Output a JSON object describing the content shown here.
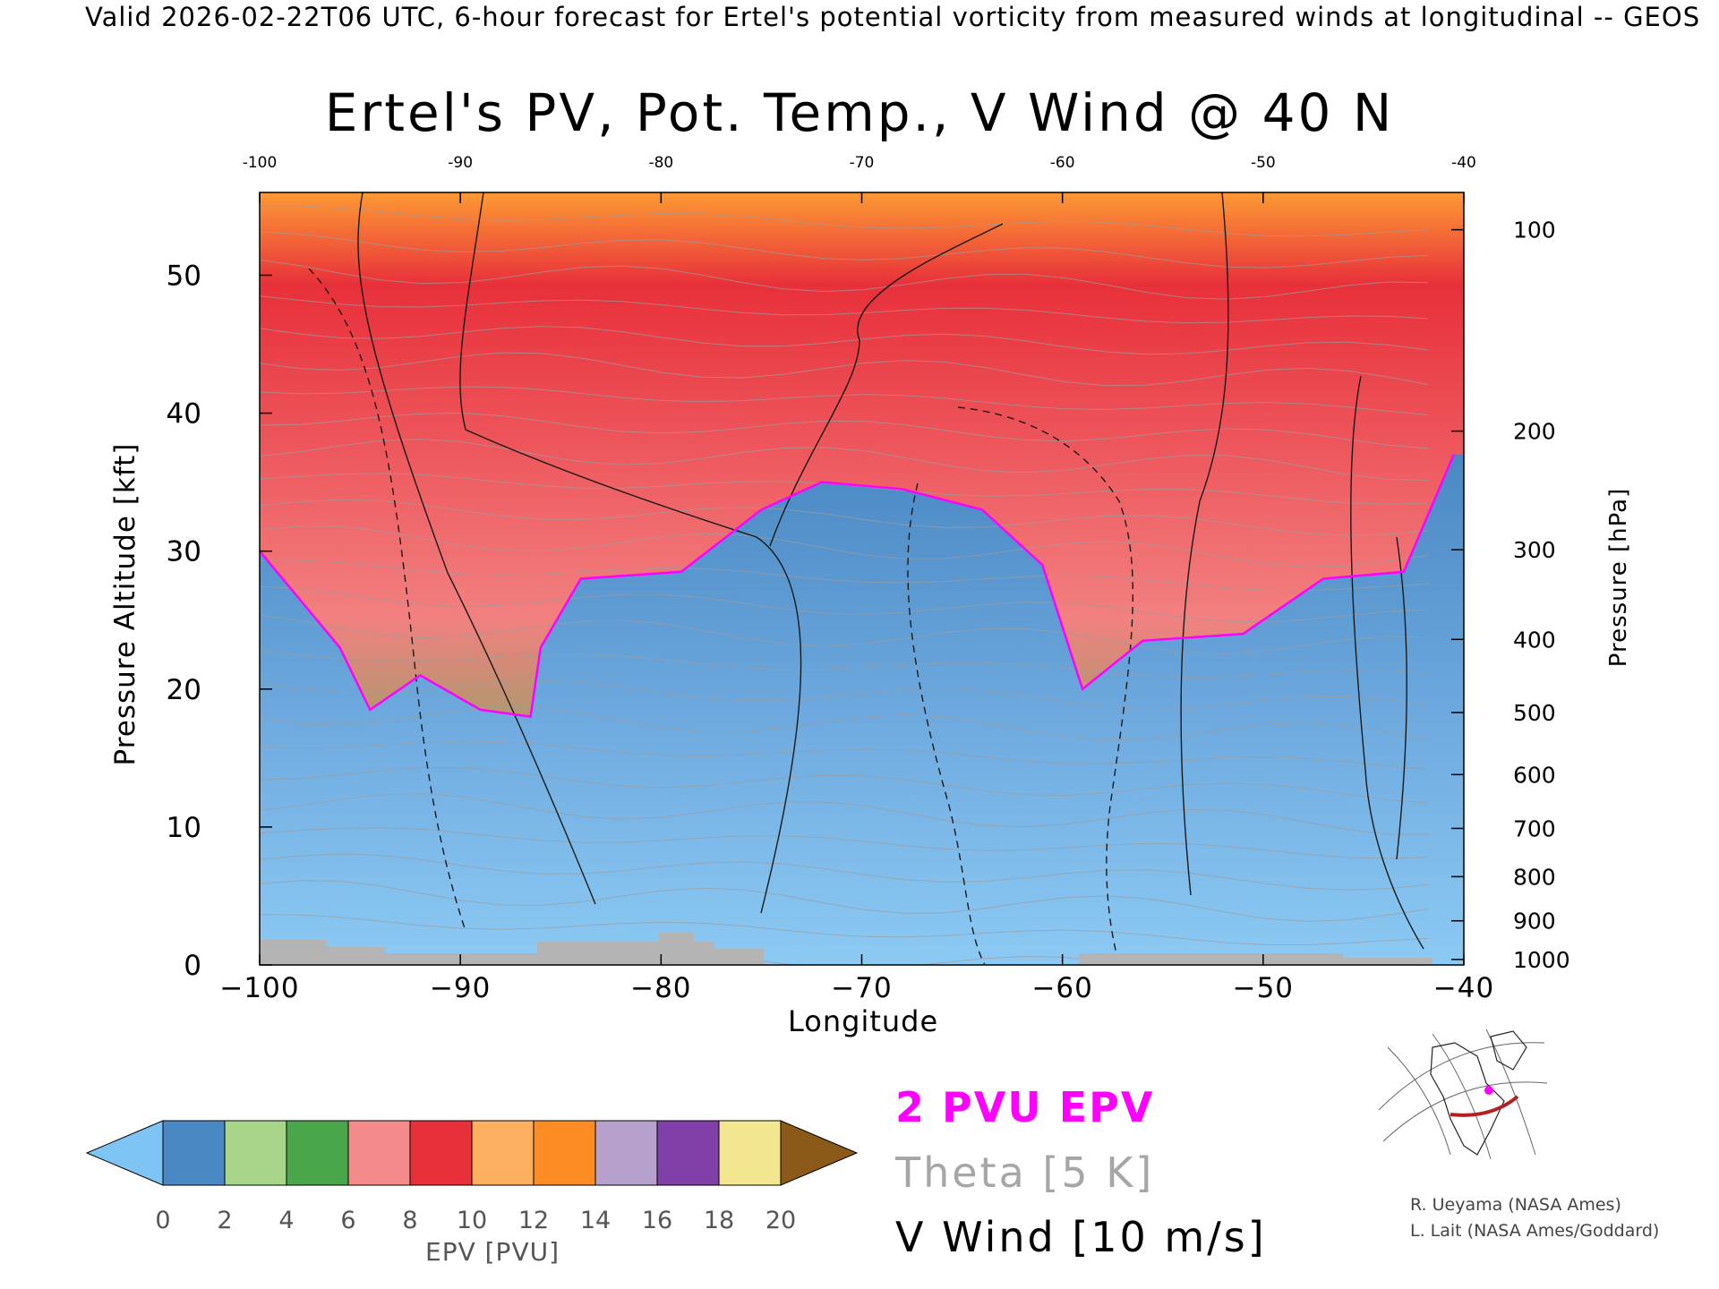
{
  "header": {
    "valid_line": "Valid 2026-02-22T06 UTC, 6-hour forecast for Ertel's potential vorticity from measured winds at longitudinal -- GEOS"
  },
  "chart_data": {
    "type": "heatmap",
    "title": "Ertel's PV, Pot. Temp., V Wind @ 40 N",
    "xlabel": "Longitude",
    "ylabel": "Pressure Altitude [kft]",
    "y2label": "Pressure [hPa]",
    "xlim": [
      -100,
      -40
    ],
    "ylim": [
      0,
      56
    ],
    "x_ticks": [
      -100,
      -90,
      -80,
      -70,
      -60,
      -50,
      -40
    ],
    "y_ticks": [
      0,
      10,
      20,
      30,
      40,
      50
    ],
    "pressure_ticks": [
      {
        "label": "100",
        "kft": 53.3
      },
      {
        "label": "200",
        "kft": 38.7
      },
      {
        "label": "300",
        "kft": 30.1
      },
      {
        "label": "400",
        "kft": 23.6
      },
      {
        "label": "500",
        "kft": 18.3
      },
      {
        "label": "600",
        "kft": 13.8
      },
      {
        "label": "700",
        "kft": 9.9
      },
      {
        "label": "800",
        "kft": 6.4
      },
      {
        "label": "900",
        "kft": 3.2
      },
      {
        "label": "1000",
        "kft": 0.4
      }
    ],
    "tropopause_2pvu_kft": [
      {
        "lon": -100,
        "kft": 30
      },
      {
        "lon": -96,
        "kft": 23
      },
      {
        "lon": -94.5,
        "kft": 18.5
      },
      {
        "lon": -92,
        "kft": 21
      },
      {
        "lon": -89,
        "kft": 18.5
      },
      {
        "lon": -86.5,
        "kft": 18
      },
      {
        "lon": -86,
        "kft": 23
      },
      {
        "lon": -84,
        "kft": 28
      },
      {
        "lon": -79,
        "kft": 28.5
      },
      {
        "lon": -75,
        "kft": 33
      },
      {
        "lon": -72,
        "kft": 35
      },
      {
        "lon": -68,
        "kft": 34.5
      },
      {
        "lon": -64,
        "kft": 33
      },
      {
        "lon": -61,
        "kft": 29
      },
      {
        "lon": -59,
        "kft": 20
      },
      {
        "lon": -56,
        "kft": 23.5
      },
      {
        "lon": -51,
        "kft": 24
      },
      {
        "lon": -47,
        "kft": 28
      },
      {
        "lon": -43,
        "kft": 28.5
      },
      {
        "lon": -40.5,
        "kft": 37
      }
    ],
    "colorbar": {
      "label": "EPV [PVU]",
      "ticks": [
        0,
        2,
        4,
        6,
        8,
        10,
        12,
        14,
        16,
        18,
        20
      ],
      "colors": [
        "#7ec4f5",
        "#4a88c4",
        "#a9d58a",
        "#4aa64a",
        "#f48a8a",
        "#e8303a",
        "#fdb060",
        "#fd8c24",
        "#b6a0cc",
        "#8040a8",
        "#f2e690",
        "#8b5a18"
      ]
    },
    "legend": {
      "epv": "2 PVU EPV",
      "theta": "Theta [5 K]",
      "vwind": "V Wind [10 m/s]"
    }
  },
  "credits": {
    "line1": "R. Ueyama (NASA Ames)",
    "line2": "L. Lait (NASA Ames/Goddard)"
  }
}
